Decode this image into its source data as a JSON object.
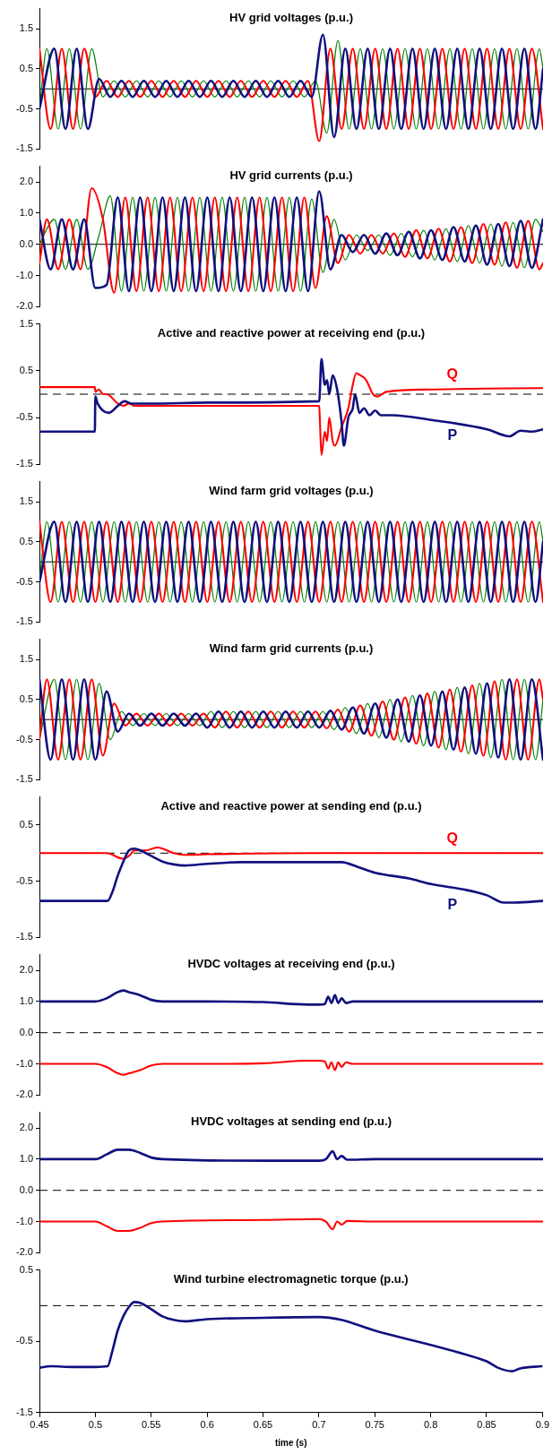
{
  "chart_data": [
    {
      "type": "line",
      "title": "HV grid voltages (p.u.)",
      "xlim": [
        0.45,
        0.9
      ],
      "ylim": [
        -1.5,
        2.0
      ],
      "yticks": [
        -1.5,
        -0.5,
        0.5,
        1.5
      ],
      "tick_labels": "y",
      "ref_lines": [
        {
          "axis": "y",
          "value": 0,
          "color": "#000000",
          "line_style": "solid"
        }
      ],
      "series": [
        {
          "color": "#10107f",
          "x": [
            0.45,
            0.4633,
            0.4733,
            0.4833,
            0.4933,
            0.5033,
            0.5133,
            0.5233,
            0.5333,
            0.5433,
            0.5533,
            0.5633,
            0.5733,
            0.5833,
            0.5933,
            0.6033,
            0.6133,
            0.6233,
            0.6333,
            0.6433,
            0.6533,
            0.6633,
            0.6733,
            0.6833,
            0.6933,
            0.7033,
            0.7133,
            0.7233,
            0.7333,
            0.7433,
            0.7533,
            0.7633,
            0.7733,
            0.7833,
            0.7933,
            0.8033,
            0.8133,
            0.8233,
            0.8333,
            0.8433,
            0.8533,
            0.8633,
            0.8733,
            0.8833,
            0.8933,
            0.9
          ],
          "values": [
            -0.5,
            1,
            -1,
            1,
            -1,
            0.25,
            -0.2,
            0.2,
            -0.2,
            0.2,
            -0.2,
            0.2,
            -0.2,
            0.2,
            -0.2,
            0.2,
            -0.2,
            0.2,
            -0.2,
            0.2,
            -0.2,
            0.2,
            -0.2,
            0.2,
            -0.2,
            1.35,
            -1.2,
            1,
            -1,
            1,
            -1,
            1,
            -1,
            1,
            -1,
            1,
            -1,
            1,
            -1,
            1,
            -1,
            1,
            -1,
            1,
            -1,
            0.5
          ]
        },
        {
          "color": "#ff0000",
          "x": [
            0.45,
            0.46,
            0.47,
            0.48,
            0.49,
            0.5,
            0.51,
            0.52,
            0.53,
            0.54,
            0.55,
            0.56,
            0.57,
            0.58,
            0.59,
            0.6,
            0.61,
            0.62,
            0.63,
            0.64,
            0.65,
            0.66,
            0.67,
            0.68,
            0.69,
            0.7,
            0.71,
            0.72,
            0.73,
            0.74,
            0.75,
            0.76,
            0.77,
            0.78,
            0.79,
            0.8,
            0.81,
            0.82,
            0.83,
            0.84,
            0.85,
            0.86,
            0.87,
            0.88,
            0.89,
            0.9
          ],
          "values": [
            1,
            -1,
            1,
            -1,
            1,
            -0.2,
            0.2,
            -0.2,
            0.2,
            -0.2,
            0.2,
            -0.2,
            0.2,
            -0.2,
            0.2,
            -0.2,
            0.2,
            -0.2,
            0.2,
            -0.2,
            0.2,
            -0.2,
            0.2,
            -0.2,
            0.2,
            -1.3,
            1,
            -1,
            1,
            -1,
            1,
            -1,
            1,
            -1,
            1,
            -1,
            1,
            -1,
            1,
            -1,
            1,
            -1,
            1,
            -1,
            1,
            -1
          ]
        },
        {
          "color": "#008000",
          "x": [
            0.45,
            0.4567,
            0.4667,
            0.4767,
            0.4867,
            0.4967,
            0.5067,
            0.5167,
            0.5267,
            0.5367,
            0.5467,
            0.5567,
            0.5667,
            0.5767,
            0.5867,
            0.5967,
            0.6067,
            0.6167,
            0.6267,
            0.6367,
            0.6467,
            0.6567,
            0.6667,
            0.6767,
            0.6867,
            0.6967,
            0.7067,
            0.7167,
            0.7267,
            0.7367,
            0.7467,
            0.7567,
            0.7667,
            0.7767,
            0.7867,
            0.7967,
            0.8067,
            0.8167,
            0.8267,
            0.8367,
            0.8467,
            0.8567,
            0.8667,
            0.8767,
            0.8867,
            0.8967,
            0.9
          ],
          "values": [
            -0.5,
            1,
            -1,
            1,
            -1,
            1,
            -0.2,
            0.2,
            -0.2,
            0.2,
            -0.2,
            0.2,
            -0.2,
            0.2,
            -0.2,
            0.2,
            -0.2,
            0.2,
            -0.2,
            0.2,
            -0.2,
            0.2,
            -0.2,
            0.2,
            -0.2,
            0.2,
            -1.1,
            1.2,
            -1,
            1,
            -1,
            1,
            -1,
            1,
            -1,
            1,
            -1,
            1,
            -1,
            1,
            -1,
            1,
            -1,
            1,
            -1,
            1,
            0.5
          ]
        }
      ]
    },
    {
      "type": "line",
      "title": "HV grid currents (p.u.)",
      "xlim": [
        0.45,
        0.9
      ],
      "ylim": [
        -2.0,
        2.5
      ],
      "yticks": [
        {
          "value": -2,
          "label": "-2.0"
        },
        {
          "value": -1,
          "label": "-1.0"
        },
        {
          "value": 0,
          "label": "0.0"
        },
        {
          "value": 1,
          "label": "1.0"
        },
        {
          "value": 2,
          "label": "2.0"
        }
      ],
      "tick_labels": "y",
      "ref_lines": [
        {
          "axis": "y",
          "value": 0,
          "color": "#000000",
          "line_style": "solid"
        }
      ],
      "series": [
        {
          "color": "#10107f",
          "x": [
            0.45,
            0.46,
            0.47,
            0.48,
            0.49,
            0.5,
            0.51,
            0.52,
            0.53,
            0.54,
            0.55,
            0.56,
            0.57,
            0.58,
            0.59,
            0.6,
            0.61,
            0.62,
            0.63,
            0.64,
            0.65,
            0.66,
            0.67,
            0.68,
            0.69,
            0.7,
            0.71,
            0.72,
            0.73,
            0.74,
            0.75,
            0.76,
            0.77,
            0.78,
            0.79,
            0.8,
            0.81,
            0.82,
            0.83,
            0.84,
            0.85,
            0.86,
            0.87,
            0.88,
            0.89,
            0.9
          ],
          "values": [
            0.8,
            -0.8,
            0.8,
            -0.8,
            0.8,
            -1.4,
            -1.3,
            1.5,
            -1.5,
            1.5,
            -1.5,
            1.5,
            -1.5,
            1.5,
            -1.5,
            1.5,
            -1.5,
            1.5,
            -1.5,
            1.5,
            -1.5,
            1.5,
            -1.5,
            1.5,
            -1.5,
            1.7,
            -0.8,
            0.3,
            -0.25,
            0.3,
            -0.3,
            0.35,
            -0.35,
            0.4,
            -0.45,
            0.45,
            -0.5,
            0.55,
            -0.55,
            0.6,
            -0.65,
            0.65,
            -0.7,
            0.75,
            -0.75,
            0.8
          ]
        },
        {
          "color": "#ff0000",
          "x": [
            0.45,
            0.4567,
            0.4667,
            0.4767,
            0.4867,
            0.4967,
            0.5067,
            0.5167,
            0.5267,
            0.5367,
            0.5467,
            0.5567,
            0.5667,
            0.5767,
            0.5867,
            0.5967,
            0.6067,
            0.6167,
            0.6267,
            0.6367,
            0.6467,
            0.6567,
            0.6667,
            0.6767,
            0.6867,
            0.6967,
            0.7067,
            0.7167,
            0.7267,
            0.7367,
            0.7467,
            0.7567,
            0.7667,
            0.7767,
            0.7867,
            0.7967,
            0.8067,
            0.8167,
            0.8267,
            0.8367,
            0.8467,
            0.8567,
            0.8667,
            0.8767,
            0.8867,
            0.8967,
            0.9
          ],
          "values": [
            -0.6,
            0.8,
            -0.8,
            0.8,
            -0.8,
            1.8,
            0.8,
            -1.55,
            1.5,
            -1.5,
            1.5,
            -1.5,
            1.5,
            -1.5,
            1.5,
            -1.5,
            1.5,
            -1.5,
            1.5,
            -1.5,
            1.5,
            -1.5,
            1.5,
            -1.5,
            1.5,
            -1.4,
            0.9,
            -0.6,
            0.3,
            -0.3,
            0.3,
            -0.3,
            0.35,
            -0.4,
            0.45,
            -0.45,
            0.5,
            -0.55,
            0.55,
            -0.6,
            0.65,
            -0.65,
            0.7,
            -0.75,
            0.75,
            -0.8,
            -0.6
          ]
        },
        {
          "color": "#008000",
          "x": [
            0.45,
            0.4633,
            0.4733,
            0.4833,
            0.4933,
            0.5033,
            0.5133,
            0.5233,
            0.5333,
            0.5433,
            0.5533,
            0.5633,
            0.5733,
            0.5833,
            0.5933,
            0.6033,
            0.6133,
            0.6233,
            0.6333,
            0.6433,
            0.6533,
            0.6633,
            0.6733,
            0.6833,
            0.6933,
            0.7033,
            0.7133,
            0.7233,
            0.7333,
            0.7433,
            0.7533,
            0.7633,
            0.7733,
            0.7833,
            0.7933,
            0.8033,
            0.8133,
            0.8233,
            0.8333,
            0.8433,
            0.8533,
            0.8633,
            0.8733,
            0.8833,
            0.8933,
            0.9
          ],
          "values": [
            0.0,
            0.8,
            -0.8,
            0.8,
            -0.8,
            0.3,
            1.55,
            -1.5,
            1.5,
            -1.5,
            1.5,
            -1.5,
            1.5,
            -1.5,
            1.5,
            -1.5,
            1.5,
            -1.5,
            1.5,
            -1.5,
            1.5,
            -1.5,
            1.5,
            -1.5,
            1.45,
            -0.9,
            0.8,
            -0.5,
            0.3,
            -0.2,
            0.3,
            -0.35,
            0.35,
            -0.4,
            0.45,
            -0.5,
            0.5,
            -0.55,
            0.6,
            -0.6,
            0.65,
            -0.7,
            0.7,
            -0.75,
            0.8,
            0.4
          ]
        }
      ]
    },
    {
      "type": "line",
      "title": "Active and reactive power at receiving end (p.u.)",
      "xlim": [
        0.45,
        0.9
      ],
      "ylim": [
        -1.5,
        1.5
      ],
      "yticks": [
        -1.5,
        -0.5,
        0.5,
        1.5
      ],
      "tick_labels": "y",
      "ref_lines": [
        {
          "axis": "y",
          "value": 0,
          "color": "#000000",
          "line_style": "dashed"
        }
      ],
      "series": [
        {
          "name": "P",
          "color": "#10107f",
          "x": [
            0.45,
            0.4995,
            0.5,
            0.502,
            0.512,
            0.52,
            0.526,
            0.532,
            0.55,
            0.6,
            0.7,
            0.702,
            0.705,
            0.707,
            0.709,
            0.712,
            0.716,
            0.72,
            0.722,
            0.726,
            0.73,
            0.732,
            0.736,
            0.74,
            0.745,
            0.75,
            0.755,
            0.765,
            0.8,
            0.85,
            0.87,
            0.88,
            0.89,
            0.9
          ],
          "values": [
            -0.8,
            -0.8,
            -0.05,
            -0.2,
            -0.4,
            -0.25,
            -0.15,
            -0.2,
            -0.2,
            -0.18,
            -0.15,
            0.75,
            0.2,
            0.3,
            0.0,
            0.4,
            0.1,
            -0.6,
            -1.1,
            -0.5,
            -0.3,
            0.0,
            -0.4,
            -0.3,
            -0.45,
            -0.35,
            -0.45,
            -0.45,
            -0.55,
            -0.75,
            -0.9,
            -0.78,
            -0.8,
            -0.75
          ]
        },
        {
          "name": "Q",
          "color": "#ff0000",
          "x": [
            0.45,
            0.4995,
            0.5,
            0.503,
            0.507,
            0.51,
            0.52,
            0.525,
            0.53,
            0.535,
            0.55,
            0.6,
            0.7,
            0.7005,
            0.702,
            0.705,
            0.707,
            0.709,
            0.712,
            0.714,
            0.72,
            0.726,
            0.73,
            0.733,
            0.737,
            0.742,
            0.748,
            0.752,
            0.76,
            0.8,
            0.85,
            0.9
          ],
          "values": [
            0.15,
            0.15,
            0.05,
            0.1,
            0.0,
            0.0,
            -0.2,
            -0.25,
            -0.2,
            -0.25,
            -0.25,
            -0.25,
            -0.25,
            -0.5,
            -1.3,
            -0.8,
            -1.0,
            -0.5,
            -1.0,
            -1.1,
            -0.7,
            -0.3,
            0.2,
            0.45,
            0.4,
            0.3,
            0.0,
            -0.05,
            0.05,
            0.1,
            0.12,
            0.13
          ]
        }
      ]
    },
    {
      "type": "line",
      "title": "Wind farm grid voltages (p.u.)",
      "xlim": [
        0.45,
        0.9
      ],
      "ylim": [
        -1.5,
        2.0
      ],
      "yticks": [
        -1.5,
        -0.5,
        0.5,
        1.5
      ],
      "tick_labels": "y",
      "ref_lines": [
        {
          "axis": "y",
          "value": 0,
          "color": "#000000",
          "line_style": "solid"
        }
      ],
      "series": [
        {
          "color": "#10107f",
          "x": [
            0.45,
            0.4633,
            0.4733,
            0.4833,
            0.4933,
            0.5033,
            0.5133,
            0.5233,
            0.5333,
            0.5433,
            0.5533,
            0.5633,
            0.5733,
            0.5833,
            0.5933,
            0.6033,
            0.6133,
            0.6233,
            0.6333,
            0.6433,
            0.6533,
            0.6633,
            0.6733,
            0.6833,
            0.6933,
            0.7033,
            0.7133,
            0.7233,
            0.7333,
            0.7433,
            0.7533,
            0.7633,
            0.7733,
            0.7833,
            0.7933,
            0.8033,
            0.8133,
            0.8233,
            0.8333,
            0.8433,
            0.8533,
            0.8633,
            0.8733,
            0.8833,
            0.8933,
            0.9
          ],
          "values": [
            -0.5,
            1,
            -1,
            1,
            -1,
            1,
            -1,
            1,
            -1,
            1,
            -1,
            1,
            -1,
            1,
            -1,
            1,
            -1,
            1,
            -1,
            1,
            -1,
            1,
            -1,
            1,
            -1,
            1,
            -1,
            1,
            -1,
            1,
            -1,
            1,
            -1,
            1,
            -1,
            1,
            -1,
            1,
            -1,
            1,
            -1,
            1,
            -1,
            1,
            -1,
            0.5
          ]
        },
        {
          "color": "#ff0000",
          "x": [
            0.45,
            0.46,
            0.47,
            0.48,
            0.49,
            0.5,
            0.51,
            0.52,
            0.53,
            0.54,
            0.55,
            0.56,
            0.57,
            0.58,
            0.59,
            0.6,
            0.61,
            0.62,
            0.63,
            0.64,
            0.65,
            0.66,
            0.67,
            0.68,
            0.69,
            0.7,
            0.71,
            0.72,
            0.73,
            0.74,
            0.75,
            0.76,
            0.77,
            0.78,
            0.79,
            0.8,
            0.81,
            0.82,
            0.83,
            0.84,
            0.85,
            0.86,
            0.87,
            0.88,
            0.89,
            0.9
          ],
          "values": [
            1,
            -1,
            1,
            -1,
            1,
            -1,
            1,
            -1,
            1,
            -1,
            1,
            -1,
            1,
            -1,
            1,
            -1,
            1,
            -1,
            1,
            -1,
            1,
            -1,
            1,
            -1,
            1,
            -1,
            1,
            -1,
            1,
            -1,
            1,
            -1,
            1,
            -1,
            1,
            -1,
            1,
            -1,
            1,
            -1,
            1,
            -1,
            1,
            -1,
            1,
            -1
          ]
        },
        {
          "color": "#008000",
          "x": [
            0.45,
            0.4567,
            0.4667,
            0.4767,
            0.4867,
            0.4967,
            0.5067,
            0.5167,
            0.5267,
            0.5367,
            0.5467,
            0.5567,
            0.5667,
            0.5767,
            0.5867,
            0.5967,
            0.6067,
            0.6167,
            0.6267,
            0.6367,
            0.6467,
            0.6567,
            0.6667,
            0.6767,
            0.6867,
            0.6967,
            0.7067,
            0.7167,
            0.7267,
            0.7367,
            0.7467,
            0.7567,
            0.7667,
            0.7767,
            0.7867,
            0.7967,
            0.8067,
            0.8167,
            0.8267,
            0.8367,
            0.8467,
            0.8567,
            0.8667,
            0.8767,
            0.8867,
            0.8967,
            0.9
          ],
          "values": [
            -0.5,
            1,
            -1,
            1,
            -1,
            1,
            -1,
            1,
            -1,
            1,
            -1,
            1,
            -1,
            1,
            -1,
            1,
            -1,
            1,
            -1,
            1,
            -1,
            1,
            -1,
            1,
            -1,
            1,
            -1,
            1,
            -1,
            1,
            -1,
            1,
            -1,
            1,
            -1,
            1,
            -1,
            1,
            -1,
            1,
            -1,
            1,
            -1,
            1,
            -1,
            1,
            0.5
          ]
        }
      ]
    },
    {
      "type": "line",
      "title": "Wind farm grid currents (p.u.)",
      "xlim": [
        0.45,
        0.9
      ],
      "ylim": [
        -1.5,
        2.0
      ],
      "yticks": [
        -1.5,
        -0.5,
        0.5,
        1.5
      ],
      "tick_labels": "y",
      "ref_lines": [
        {
          "axis": "y",
          "value": 0,
          "color": "#000000",
          "line_style": "solid"
        }
      ],
      "series": [
        {
          "color": "#10107f",
          "x": [
            0.45,
            0.46,
            0.47,
            0.48,
            0.49,
            0.5,
            0.51,
            0.52,
            0.53,
            0.54,
            0.55,
            0.56,
            0.57,
            0.58,
            0.59,
            0.6,
            0.61,
            0.62,
            0.63,
            0.64,
            0.65,
            0.66,
            0.67,
            0.68,
            0.69,
            0.7,
            0.71,
            0.72,
            0.73,
            0.74,
            0.75,
            0.76,
            0.77,
            0.78,
            0.79,
            0.8,
            0.81,
            0.82,
            0.83,
            0.84,
            0.85,
            0.86,
            0.87,
            0.88,
            0.89,
            0.9
          ],
          "values": [
            1,
            -1,
            1,
            -1,
            1,
            -1,
            0.7,
            -0.3,
            0.15,
            -0.15,
            0.15,
            -0.15,
            0.15,
            -0.15,
            0.15,
            -0.2,
            0.2,
            -0.2,
            0.2,
            -0.2,
            0.2,
            -0.2,
            0.2,
            -0.2,
            0.2,
            -0.2,
            0.22,
            -0.25,
            0.3,
            -0.35,
            0.4,
            -0.45,
            0.5,
            -0.55,
            0.6,
            -0.65,
            0.7,
            -0.75,
            0.8,
            -0.85,
            0.9,
            -0.95,
            1,
            -1,
            1,
            -1
          ]
        },
        {
          "color": "#ff0000",
          "x": [
            0.45,
            0.4567,
            0.4667,
            0.4767,
            0.4867,
            0.4967,
            0.5067,
            0.5167,
            0.5267,
            0.5367,
            0.5467,
            0.5567,
            0.5667,
            0.5767,
            0.5867,
            0.5967,
            0.6067,
            0.6167,
            0.6267,
            0.6367,
            0.6467,
            0.6567,
            0.6667,
            0.6767,
            0.6867,
            0.6967,
            0.7067,
            0.7167,
            0.7267,
            0.7367,
            0.7467,
            0.7567,
            0.7667,
            0.7767,
            0.7867,
            0.7967,
            0.8067,
            0.8167,
            0.8267,
            0.8367,
            0.8467,
            0.8567,
            0.8667,
            0.8767,
            0.8867,
            0.8967,
            0.9
          ],
          "values": [
            -0.5,
            1,
            -1,
            1,
            -1,
            1,
            -0.9,
            0.4,
            -0.15,
            0.15,
            -0.15,
            0.15,
            -0.15,
            0.15,
            -0.15,
            0.15,
            -0.2,
            0.2,
            -0.2,
            0.2,
            -0.2,
            0.2,
            -0.2,
            0.2,
            -0.2,
            0.2,
            -0.22,
            0.25,
            -0.3,
            0.35,
            -0.4,
            0.45,
            -0.5,
            0.55,
            -0.6,
            0.65,
            -0.7,
            0.75,
            -0.8,
            0.85,
            -0.9,
            0.95,
            -1,
            1,
            -1,
            1,
            0.5
          ]
        },
        {
          "color": "#008000",
          "x": [
            0.45,
            0.4633,
            0.4733,
            0.4833,
            0.4933,
            0.5033,
            0.5133,
            0.5233,
            0.5333,
            0.5433,
            0.5533,
            0.5633,
            0.5733,
            0.5833,
            0.5933,
            0.6033,
            0.6133,
            0.6233,
            0.6333,
            0.6433,
            0.6533,
            0.6633,
            0.6733,
            0.6833,
            0.6933,
            0.7033,
            0.7133,
            0.7233,
            0.7333,
            0.7433,
            0.7533,
            0.7633,
            0.7733,
            0.7833,
            0.7933,
            0.8033,
            0.8133,
            0.8233,
            0.8333,
            0.8433,
            0.8533,
            0.8633,
            0.8733,
            0.8833,
            0.8933,
            0.9
          ],
          "values": [
            -0.5,
            1,
            -1,
            1,
            -1,
            0.9,
            -0.5,
            0.2,
            -0.15,
            0.15,
            -0.15,
            0.15,
            -0.15,
            0.15,
            -0.15,
            0.2,
            -0.2,
            0.2,
            -0.2,
            0.2,
            -0.2,
            0.2,
            -0.2,
            0.2,
            -0.2,
            0.2,
            -0.25,
            0.3,
            -0.35,
            0.4,
            -0.45,
            0.5,
            -0.55,
            0.6,
            -0.65,
            0.7,
            -0.75,
            0.8,
            -0.85,
            0.9,
            -0.95,
            1,
            -1,
            1,
            -1,
            0.5
          ]
        }
      ]
    },
    {
      "type": "line",
      "title": "Active and reactive power at sending end (p.u.)",
      "xlim": [
        0.45,
        0.9
      ],
      "ylim": [
        -1.5,
        1.0
      ],
      "yticks": [
        -1.5,
        -0.5,
        0.5
      ],
      "tick_labels": "y",
      "ref_lines": [
        {
          "axis": "y",
          "value": 0,
          "color": "#000000",
          "line_style": "dashed"
        }
      ],
      "series": [
        {
          "name": "P",
          "color": "#10107f",
          "x": [
            0.45,
            0.5,
            0.511,
            0.515,
            0.52,
            0.525,
            0.53,
            0.535,
            0.54,
            0.55,
            0.56,
            0.57,
            0.58,
            0.6,
            0.63,
            0.7,
            0.72,
            0.735,
            0.75,
            0.78,
            0.8,
            0.83,
            0.85,
            0.865,
            0.875,
            0.9
          ],
          "values": [
            -0.85,
            -0.85,
            -0.85,
            -0.7,
            -0.4,
            -0.15,
            0.05,
            0.08,
            0.05,
            -0.05,
            -0.15,
            -0.2,
            -0.22,
            -0.19,
            -0.16,
            -0.16,
            -0.16,
            -0.25,
            -0.35,
            -0.45,
            -0.55,
            -0.65,
            -0.75,
            -0.88,
            -0.88,
            -0.85
          ]
        },
        {
          "name": "Q",
          "color": "#ff0000",
          "x": [
            0.45,
            0.51,
            0.525,
            0.53,
            0.535,
            0.545,
            0.555,
            0.56,
            0.57,
            0.58,
            0.6,
            0.7,
            0.8,
            0.9
          ],
          "values": [
            0.0,
            0.0,
            -0.1,
            -0.05,
            0.05,
            0.05,
            0.1,
            0.08,
            0.0,
            -0.03,
            -0.02,
            0.0,
            0.0,
            0.0
          ]
        }
      ]
    },
    {
      "type": "line",
      "title": "HVDC voltages at receiving end (p.u.)",
      "xlim": [
        0.45,
        0.9
      ],
      "ylim": [
        -2.0,
        2.5
      ],
      "yticks": [
        {
          "value": -2,
          "label": "-2.0"
        },
        {
          "value": -1,
          "label": "-1.0"
        },
        {
          "value": 0,
          "label": "0.0"
        },
        {
          "value": 1,
          "label": "1.0"
        },
        {
          "value": 2,
          "label": "2.0"
        }
      ],
      "tick_labels": "y",
      "ref_lines": [
        {
          "axis": "y",
          "value": 0,
          "color": "#000000",
          "line_style": "dashed"
        }
      ],
      "series": [
        {
          "color": "#10107f",
          "x": [
            0.45,
            0.5,
            0.51,
            0.52,
            0.525,
            0.53,
            0.54,
            0.55,
            0.56,
            0.6,
            0.65,
            0.69,
            0.7,
            0.705,
            0.708,
            0.711,
            0.714,
            0.717,
            0.72,
            0.724,
            0.73,
            0.75,
            0.9
          ],
          "values": [
            1.0,
            1.0,
            1.1,
            1.3,
            1.35,
            1.3,
            1.2,
            1.05,
            1.0,
            1.0,
            0.98,
            0.9,
            0.9,
            0.92,
            1.15,
            0.95,
            1.2,
            0.95,
            1.1,
            0.95,
            1.0,
            1.0,
            1.0
          ]
        },
        {
          "color": "#ff0000",
          "x": [
            0.45,
            0.5,
            0.51,
            0.52,
            0.525,
            0.53,
            0.54,
            0.55,
            0.56,
            0.6,
            0.65,
            0.69,
            0.7,
            0.705,
            0.708,
            0.711,
            0.714,
            0.717,
            0.72,
            0.724,
            0.73,
            0.75,
            0.9
          ],
          "values": [
            -1.0,
            -1.0,
            -1.1,
            -1.3,
            -1.35,
            -1.3,
            -1.2,
            -1.05,
            -1.0,
            -1.0,
            -0.98,
            -0.9,
            -0.9,
            -0.92,
            -1.15,
            -0.95,
            -1.2,
            -0.95,
            -1.1,
            -0.95,
            -1.0,
            -1.0,
            -1.0
          ]
        }
      ]
    },
    {
      "type": "line",
      "title": "HVDC voltages at sending end (p.u.)",
      "xlim": [
        0.45,
        0.9
      ],
      "ylim": [
        -2.0,
        2.5
      ],
      "yticks": [
        {
          "value": -2,
          "label": "-2.0"
        },
        {
          "value": -1,
          "label": "-1.0"
        },
        {
          "value": 0,
          "label": "0.0"
        },
        {
          "value": 1,
          "label": "1.0"
        },
        {
          "value": 2,
          "label": "2.0"
        }
      ],
      "tick_labels": "y",
      "ref_lines": [
        {
          "axis": "y",
          "value": 0,
          "color": "#000000",
          "line_style": "dashed"
        }
      ],
      "series": [
        {
          "color": "#10107f",
          "x": [
            0.45,
            0.5,
            0.51,
            0.52,
            0.53,
            0.54,
            0.55,
            0.56,
            0.65,
            0.7,
            0.706,
            0.712,
            0.716,
            0.72,
            0.725,
            0.75,
            0.9
          ],
          "values": [
            1.0,
            1.0,
            1.15,
            1.3,
            1.3,
            1.2,
            1.05,
            1.0,
            0.95,
            0.95,
            1.0,
            1.25,
            1.0,
            1.1,
            0.98,
            1.0,
            1.0
          ]
        },
        {
          "color": "#ff0000",
          "x": [
            0.45,
            0.5,
            0.51,
            0.52,
            0.53,
            0.54,
            0.55,
            0.56,
            0.65,
            0.7,
            0.706,
            0.712,
            0.716,
            0.72,
            0.725,
            0.75,
            0.9
          ],
          "values": [
            -1.0,
            -1.0,
            -1.15,
            -1.3,
            -1.3,
            -1.2,
            -1.05,
            -1.0,
            -0.95,
            -0.92,
            -1.0,
            -1.25,
            -1.0,
            -1.1,
            -0.98,
            -1.0,
            -1.0
          ]
        }
      ]
    },
    {
      "type": "line",
      "title": "Wind turbine electromagnetic torque (p.u.)",
      "xlabel": "time (s)",
      "xlim": [
        0.45,
        0.9
      ],
      "xticks": [
        0.45,
        0.5,
        0.55,
        0.6,
        0.65,
        0.7,
        0.75,
        0.8,
        0.85,
        0.9
      ],
      "ylim": [
        -1.5,
        0.5
      ],
      "yticks": [
        -1.5,
        -0.5,
        0.5
      ],
      "ref_lines": [
        {
          "axis": "y",
          "value": 0,
          "color": "#000000",
          "line_style": "dashed"
        }
      ],
      "series": [
        {
          "color": "#10107f",
          "x": [
            0.45,
            0.46,
            0.48,
            0.5,
            0.511,
            0.515,
            0.52,
            0.525,
            0.53,
            0.535,
            0.54,
            0.55,
            0.56,
            0.57,
            0.58,
            0.6,
            0.65,
            0.7,
            0.72,
            0.75,
            0.8,
            0.83,
            0.85,
            0.86,
            0.873,
            0.88,
            0.9
          ],
          "values": [
            -0.87,
            -0.85,
            -0.86,
            -0.86,
            -0.85,
            -0.65,
            -0.35,
            -0.15,
            -0.02,
            0.05,
            0.04,
            -0.05,
            -0.15,
            -0.2,
            -0.22,
            -0.19,
            -0.17,
            -0.16,
            -0.2,
            -0.35,
            -0.55,
            -0.68,
            -0.78,
            -0.87,
            -0.92,
            -0.88,
            -0.85
          ]
        }
      ]
    }
  ]
}
